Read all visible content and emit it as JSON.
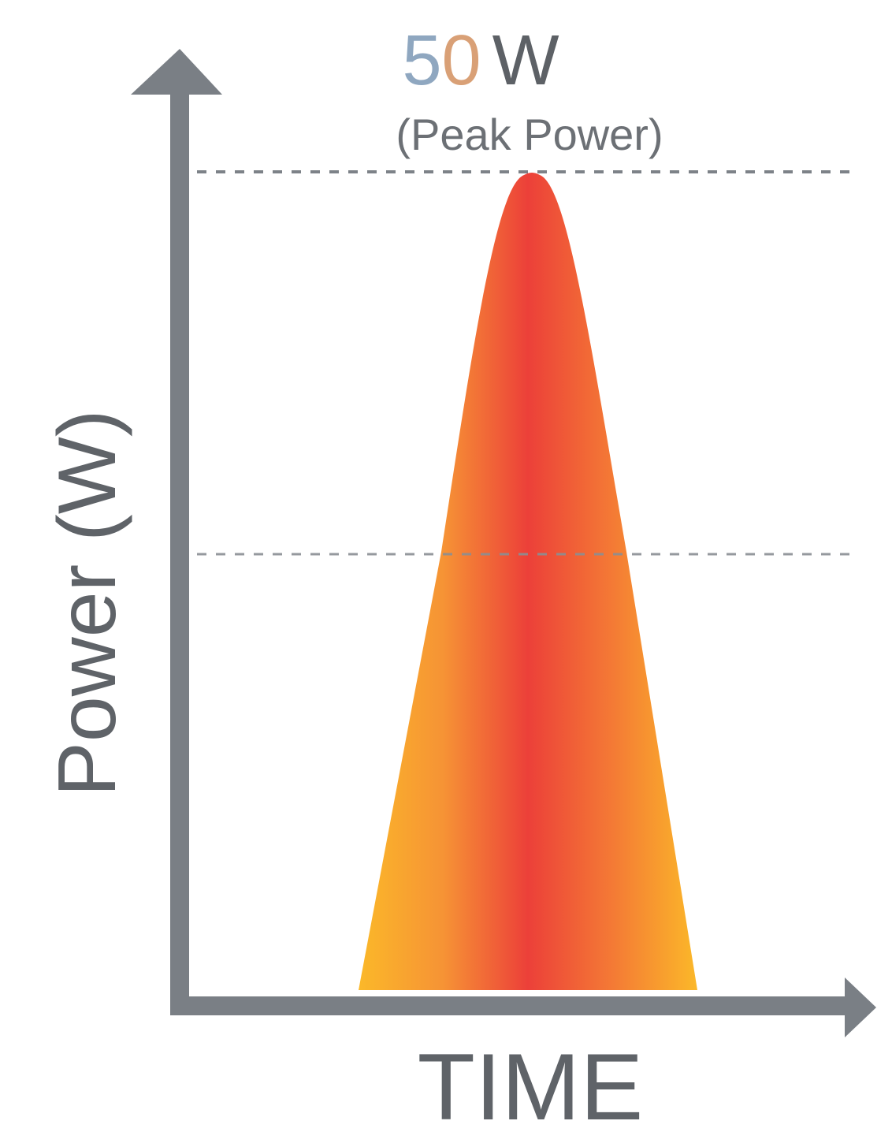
{
  "diagram": {
    "peak_value_digits": "50",
    "peak_value_unit": "W",
    "peak_note": "(Peak Power)",
    "y_axis_label": "Power (W)",
    "x_axis_label": "TIME"
  },
  "colors": {
    "axis": "#7a7f85",
    "pulse_edge": "#fbb829",
    "pulse_mid": "#f47a35",
    "pulse_center": "#ec4039",
    "peak_digit_5": "#8fa7c0",
    "peak_digit_0": "#d9a076"
  },
  "icons": {
    "y_arrow": "arrow-up-icon",
    "x_arrow": "arrow-right-icon"
  }
}
